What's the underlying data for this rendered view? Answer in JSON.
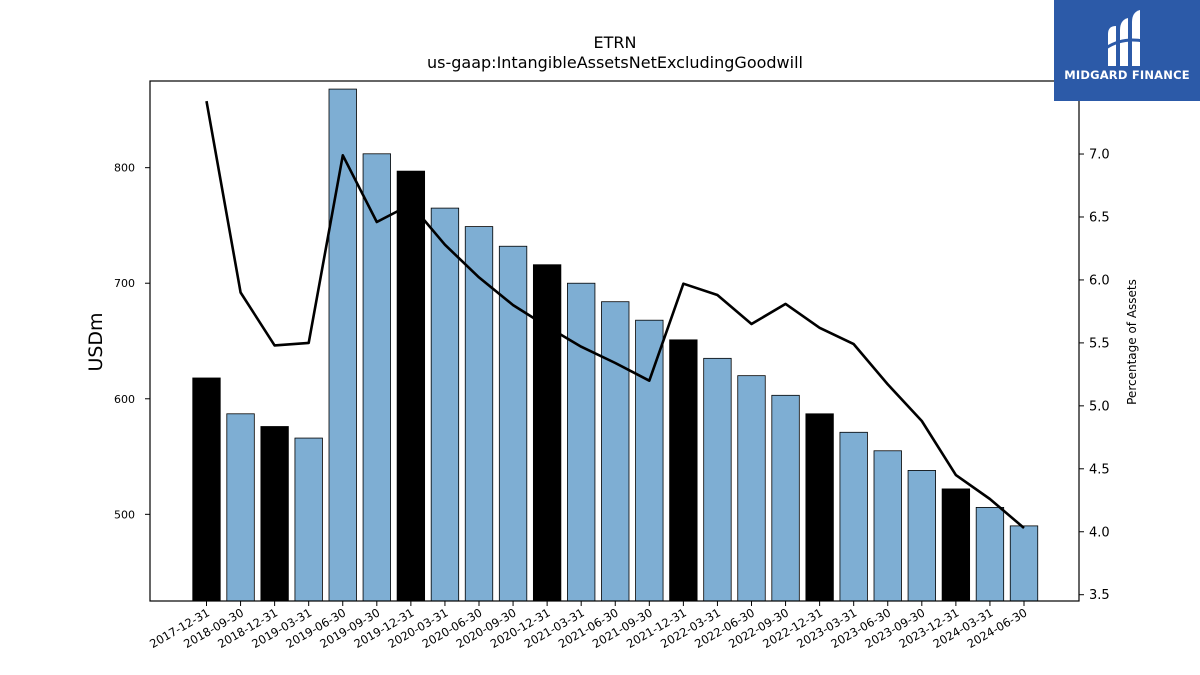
{
  "chart_data": {
    "type": "bar",
    "title": "ETRN",
    "subtitle": "us-gaap:IntangibleAssetsNetExcludingGoodwill",
    "ylabel": "USDm",
    "y2label": "Percentage of Assets",
    "ylim": [
      425,
      875
    ],
    "y2lim": [
      3.45,
      7.58
    ],
    "yticks": [
      500,
      600,
      700,
      800
    ],
    "y2ticks": [
      3.5,
      4.0,
      4.5,
      5.0,
      5.5,
      6.0,
      6.5,
      7.0
    ],
    "categories": [
      "2017-12-31",
      "2018-09-30",
      "2018-12-31",
      "2019-03-31",
      "2019-06-30",
      "2019-09-30",
      "2019-12-31",
      "2020-03-31",
      "2020-06-30",
      "2020-09-30",
      "2020-12-31",
      "2021-03-31",
      "2021-06-30",
      "2021-09-30",
      "2021-12-31",
      "2022-03-31",
      "2022-06-30",
      "2022-09-30",
      "2022-12-31",
      "2023-03-31",
      "2023-06-30",
      "2023-09-30",
      "2023-12-31",
      "2024-03-31",
      "2024-06-30"
    ],
    "series": [
      {
        "kind": "bar",
        "values": [
          618,
          587,
          576,
          566,
          868,
          812,
          797,
          765,
          749,
          732,
          716,
          700,
          684,
          668,
          651,
          635,
          620,
          603,
          587,
          571,
          555,
          538,
          522,
          506,
          490
        ],
        "colors": [
          "#000000",
          "#7eaed3",
          "#000000",
          "#7eaed3",
          "#7eaed3",
          "#7eaed3",
          "#000000",
          "#7eaed3",
          "#7eaed3",
          "#7eaed3",
          "#000000",
          "#7eaed3",
          "#7eaed3",
          "#7eaed3",
          "#000000",
          "#7eaed3",
          "#7eaed3",
          "#7eaed3",
          "#000000",
          "#7eaed3",
          "#7eaed3",
          "#7eaed3",
          "#000000",
          "#7eaed3",
          "#7eaed3"
        ]
      },
      {
        "kind": "line",
        "axis": "right",
        "color": "#000000",
        "values": [
          7.42,
          5.9,
          5.48,
          5.5,
          6.99,
          6.46,
          6.6,
          6.28,
          6.02,
          5.8,
          5.63,
          5.47,
          5.34,
          5.2,
          5.97,
          5.88,
          5.65,
          5.81,
          5.62,
          5.49,
          5.17,
          4.88,
          4.45,
          4.26,
          4.03
        ]
      }
    ],
    "grid": false,
    "legend": "none"
  },
  "logo": {
    "text": "MIDGARD FINANCE",
    "background": "#2c5aa8"
  }
}
